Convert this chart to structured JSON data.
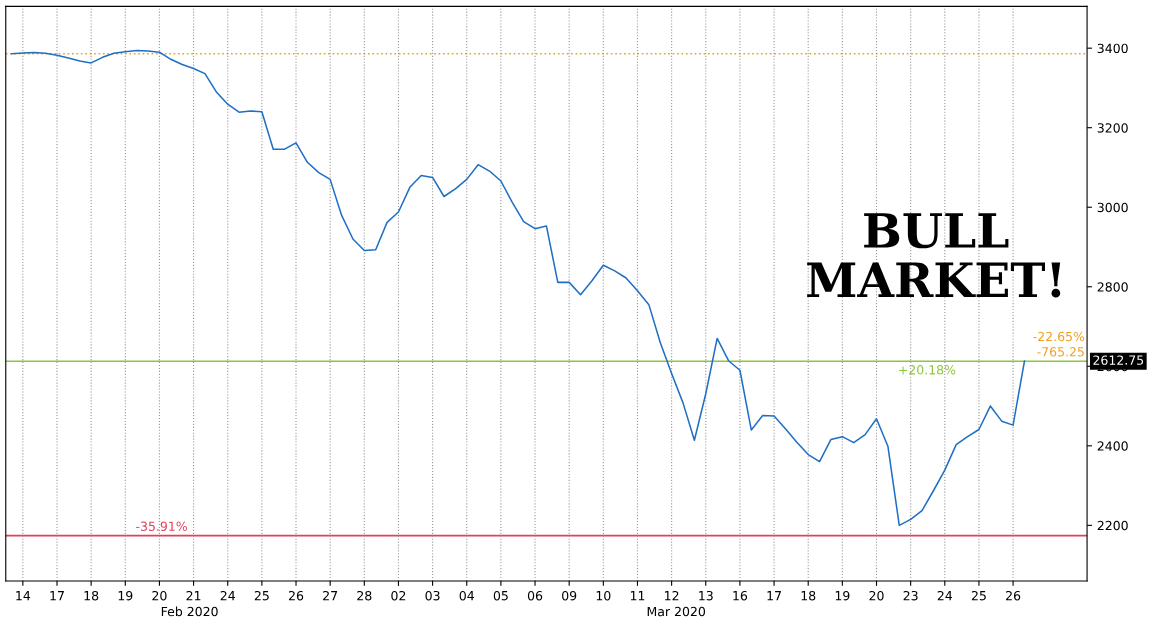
{
  "chart_data": {
    "type": "line",
    "categories": [
      null,
      "14",
      null,
      null,
      "17",
      null,
      null,
      "18",
      null,
      null,
      "19",
      null,
      null,
      "20",
      null,
      null,
      "21",
      null,
      null,
      "24",
      null,
      null,
      "25",
      null,
      null,
      "26",
      null,
      null,
      "27",
      null,
      null,
      "28",
      null,
      null,
      "02",
      null,
      null,
      "03",
      null,
      null,
      "04",
      null,
      null,
      "05",
      null,
      null,
      "06",
      null,
      null,
      "09",
      null,
      null,
      "10",
      null,
      null,
      "11",
      null,
      null,
      "12",
      null,
      null,
      "13",
      null,
      null,
      "16",
      null,
      null,
      "17",
      null,
      null,
      "18",
      null,
      null,
      "19",
      null,
      null,
      "20",
      null,
      null,
      "23",
      null,
      null,
      "24",
      null,
      null,
      "25",
      null,
      null,
      "26",
      null
    ],
    "series": [
      {
        "color": "#1f6fc5",
        "values": [
          3386,
          3388,
          3389,
          3387,
          3382,
          3375,
          3368,
          3363,
          3377,
          3387,
          3391,
          3394,
          3393,
          3390,
          3372,
          3359,
          3349,
          3336,
          3290,
          3259,
          3239,
          3242,
          3240,
          3146,
          3146,
          3162,
          3113,
          3087,
          3070,
          2980,
          2920,
          2891,
          2893,
          2962,
          2988,
          3050,
          3080,
          3075,
          3027,
          3046,
          3070,
          3107,
          3091,
          3066,
          3012,
          2964,
          2946,
          2953,
          2811,
          2811,
          2780,
          2815,
          2854,
          2840,
          2822,
          2790,
          2755,
          2660,
          2582,
          2508,
          2414,
          2531,
          2670,
          2614,
          2590,
          2440,
          2476,
          2475,
          2443,
          2409,
          2378,
          2360,
          2416,
          2423,
          2408,
          2428,
          2468,
          2399,
          2200,
          2215,
          2237,
          2287,
          2339,
          2403,
          2423,
          2441,
          2500,
          2462,
          2452,
          2613
        ]
      }
    ],
    "ylim": [
      2060,
      3505
    ],
    "yticks": [
      2200,
      2400,
      2600,
      2800,
      3000,
      3200,
      3400
    ],
    "grid": "x",
    "line_style": "solid",
    "ref_lines": [
      {
        "axis": "y",
        "value": 3386,
        "color": "#f0a020",
        "line_style": "dotted"
      },
      {
        "axis": "y",
        "value": 2174,
        "color": "#e0405a",
        "line_style": "solid"
      },
      {
        "axis": "y",
        "value": 2612.75,
        "color": "#8cc63f",
        "line_style": "solid"
      }
    ],
    "annotations": [
      "Feb 2020",
      "Mar 2020",
      "BULL MARKET!",
      {
        "text": "-35.91%",
        "y": 2174
      },
      {
        "text": "+20.18%",
        "y": 2612.75
      },
      {
        "text": "-22.65%",
        "y": 2612.75
      },
      {
        "text": "-765.25",
        "y": 2612.75
      },
      "2612.75"
    ]
  }
}
